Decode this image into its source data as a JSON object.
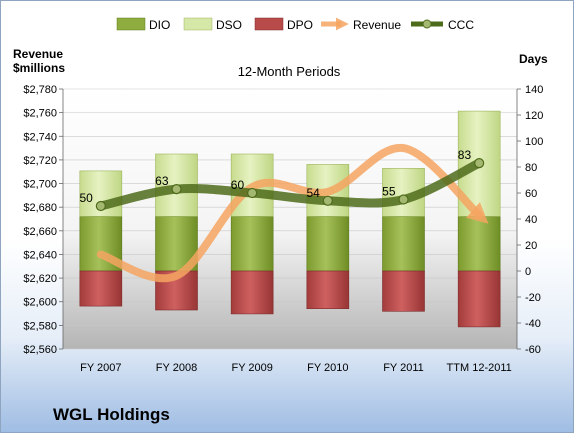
{
  "chart_data": {
    "type": "bar",
    "subtitle": "12-Month Periods",
    "left_axis_label": [
      "Revenue",
      "$millions"
    ],
    "right_axis_label": "Days",
    "categories": [
      "FY 2007",
      "FY 2008",
      "FY 2009",
      "FY 2010",
      "FY 2011",
      "TTM 12-2011"
    ],
    "left_ylim": [
      2560,
      2780
    ],
    "left_ticks": [
      2560,
      2580,
      2600,
      2620,
      2640,
      2660,
      2680,
      2700,
      2720,
      2740,
      2760,
      2780
    ],
    "left_tick_labels": [
      "$2,560",
      "$2,580",
      "$2,600",
      "$2,620",
      "$2,640",
      "$2,660",
      "$2,680",
      "$2,700",
      "$2,720",
      "$2,740",
      "$2,760",
      "$2,780"
    ],
    "right_ylim": [
      -60,
      140
    ],
    "right_ticks": [
      -60,
      -40,
      -20,
      0,
      20,
      40,
      60,
      80,
      100,
      120,
      140
    ],
    "legend_position": "top",
    "legend": [
      {
        "name": "DIO",
        "kind": "bar",
        "color": "#8fac3e"
      },
      {
        "name": "DSO",
        "kind": "bar",
        "color": "#d6e8a8"
      },
      {
        "name": "DPO",
        "kind": "bar",
        "color": "#b84a4a"
      },
      {
        "name": "Revenue",
        "kind": "arrow",
        "color": "#f4a460"
      },
      {
        "name": "CCC",
        "kind": "line",
        "color": "#4e6b1a"
      }
    ],
    "series": [
      {
        "name": "DIO",
        "axis": "right",
        "values": [
          42,
          42,
          42,
          42,
          42,
          42
        ]
      },
      {
        "name": "DSO",
        "axis": "right",
        "values": [
          35,
          48,
          48,
          40,
          37,
          81
        ]
      },
      {
        "name": "DPO",
        "axis": "right",
        "values": [
          -27,
          -30,
          -33,
          -29,
          -31,
          -43
        ]
      },
      {
        "name": "CCC",
        "axis": "right",
        "values": [
          50,
          63,
          60,
          54,
          55,
          83
        ]
      },
      {
        "name": "Revenue",
        "axis": "left",
        "values": [
          2640,
          2622,
          2697,
          2693,
          2730,
          2673
        ]
      }
    ],
    "data_labels": {
      "series": "CCC",
      "values": [
        "50",
        "63",
        "60",
        "54",
        "55",
        "83"
      ]
    },
    "company": "WGL Holdings"
  }
}
